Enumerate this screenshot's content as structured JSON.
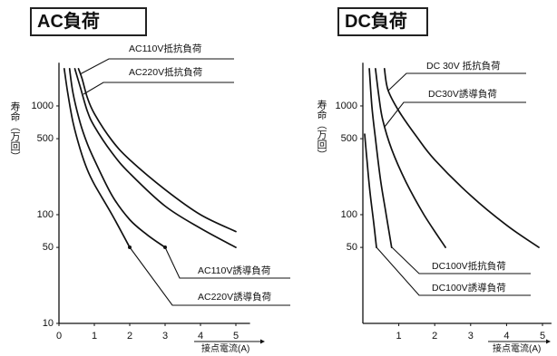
{
  "colors": {
    "ink": "#111111",
    "background": "#ffffff"
  },
  "chart_data": [
    {
      "type": "line",
      "title": "AC負荷",
      "xlabel": "接点電流(A)",
      "ylabel": "寿命（万回）",
      "yscale": "log",
      "grid": false,
      "xlim": [
        0,
        5.4
      ],
      "ylim": [
        10,
        2500
      ],
      "xticks": [
        0,
        1,
        2,
        3,
        4,
        5
      ],
      "yticks": [
        10,
        50,
        100,
        500,
        1000
      ],
      "series": [
        {
          "name": "AC110V抵抗負荷",
          "points": [
            [
              0.55,
              2200
            ],
            [
              0.65,
              1800
            ],
            [
              0.8,
              1200
            ],
            [
              1.0,
              850
            ],
            [
              1.5,
              480
            ],
            [
              2.0,
              320
            ],
            [
              3.0,
              170
            ],
            [
              4.0,
              100
            ],
            [
              5.0,
              70
            ]
          ]
        },
        {
          "name": "AC220V抵抗負荷",
          "points": [
            [
              0.45,
              2200
            ],
            [
              0.6,
              1500
            ],
            [
              0.8,
              900
            ],
            [
              1.0,
              650
            ],
            [
              1.5,
              370
            ],
            [
              2.0,
              240
            ],
            [
              3.0,
              120
            ],
            [
              4.0,
              75
            ],
            [
              5.0,
              50
            ]
          ]
        },
        {
          "name": "AC110V誘導負荷",
          "points": [
            [
              0.3,
              2200
            ],
            [
              0.4,
              1300
            ],
            [
              0.6,
              700
            ],
            [
              0.8,
              450
            ],
            [
              1.0,
              320
            ],
            [
              1.5,
              150
            ],
            [
              2.0,
              90
            ],
            [
              2.5,
              65
            ],
            [
              3.0,
              50
            ]
          ]
        },
        {
          "name": "AC220V誘導負荷",
          "points": [
            [
              0.15,
              2200
            ],
            [
              0.25,
              1300
            ],
            [
              0.4,
              700
            ],
            [
              0.6,
              400
            ],
            [
              0.8,
              260
            ],
            [
              1.0,
              190
            ],
            [
              1.5,
              100
            ],
            [
              2.0,
              50
            ]
          ]
        }
      ]
    },
    {
      "type": "line",
      "title": "DC負荷",
      "xlabel": "接点電流(A)",
      "ylabel": "寿命（万回）",
      "yscale": "log",
      "grid": false,
      "xlim": [
        0,
        5.25
      ],
      "ylim": [
        10,
        2500
      ],
      "xticks": [
        1,
        2,
        3,
        4,
        5
      ],
      "yticks": [
        50,
        100,
        500,
        1000
      ],
      "series": [
        {
          "name": "DC 30V 抵抗負荷",
          "points": [
            [
              0.6,
              2200
            ],
            [
              0.7,
              1400
            ],
            [
              1.0,
              900
            ],
            [
              1.5,
              520
            ],
            [
              2.0,
              320
            ],
            [
              3.0,
              150
            ],
            [
              4.0,
              80
            ],
            [
              4.9,
              50
            ]
          ]
        },
        {
          "name": "DC30V誘導負荷",
          "points": [
            [
              0.35,
              2200
            ],
            [
              0.45,
              1200
            ],
            [
              0.55,
              750
            ],
            [
              0.8,
              400
            ],
            [
              1.2,
              200
            ],
            [
              1.7,
              100
            ],
            [
              2.3,
              50
            ]
          ]
        },
        {
          "name": "DC100V抵抗負荷",
          "points": [
            [
              0.18,
              2200
            ],
            [
              0.25,
              1000
            ],
            [
              0.35,
              500
            ],
            [
              0.5,
              200
            ],
            [
              0.65,
              100
            ],
            [
              0.8,
              50
            ]
          ]
        },
        {
          "name": "DC100V誘導負荷",
          "points": [
            [
              0.05,
              550
            ],
            [
              0.12,
              300
            ],
            [
              0.2,
              160
            ],
            [
              0.3,
              85
            ],
            [
              0.38,
              50
            ]
          ]
        }
      ]
    }
  ]
}
